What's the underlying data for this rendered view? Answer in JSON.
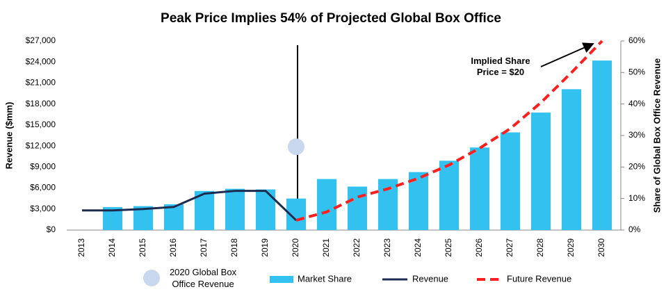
{
  "chart_data": {
    "type": "bar",
    "title": "Peak Price Implies 54% of Projected Global Box Office",
    "y_label": "Revenue ($mm)",
    "y2_label": "Share of Global Box Office Revenue",
    "annotation": "Implied Share Price = $20",
    "categories": [
      "2013",
      "2014",
      "2015",
      "2016",
      "2017",
      "2018",
      "2019",
      "2020",
      "2021",
      "2022",
      "2023",
      "2024",
      "2025",
      "2026",
      "2027",
      "2028",
      "2029",
      "2030"
    ],
    "series": [
      {
        "name": "2020 Global Box Office Revenue",
        "type": "marker",
        "color": "#c9d7ef",
        "values": [
          null,
          null,
          null,
          null,
          null,
          null,
          null,
          11900,
          null,
          null,
          null,
          null,
          null,
          null,
          null,
          null,
          null,
          null
        ]
      },
      {
        "name": "Market Share",
        "type": "bar",
        "axis": "y2",
        "color": "#33c2f0",
        "values": [
          null,
          7.3,
          7.6,
          8.2,
          12.4,
          13.1,
          12.9,
          10,
          16.2,
          13.8,
          16.2,
          18.4,
          22,
          26.2,
          31,
          37.3,
          44.7,
          53.8
        ]
      },
      {
        "name": "Revenue",
        "type": "line",
        "color": "#1c2b50",
        "dashed": false,
        "values": [
          2800,
          2800,
          3000,
          3300,
          5200,
          5600,
          5600,
          1400,
          null,
          null,
          null,
          null,
          null,
          null,
          null,
          null,
          null,
          null
        ]
      },
      {
        "name": "Future Revenue",
        "type": "line",
        "color": "#ff1f1f",
        "dashed": true,
        "values": [
          null,
          null,
          null,
          null,
          null,
          null,
          null,
          1400,
          2600,
          4700,
          5900,
          7400,
          9300,
          11700,
          14500,
          18200,
          22500,
          27000
        ]
      }
    ],
    "ylim": [
      0,
      27000
    ],
    "yticks": [
      {
        "value": 0,
        "label": "$0"
      },
      {
        "value": 3000,
        "label": "$3,000"
      },
      {
        "value": 6000,
        "label": "$6,000"
      },
      {
        "value": 9000,
        "label": "$9,000"
      },
      {
        "value": 12000,
        "label": "$12,000"
      },
      {
        "value": 15000,
        "label": "$15,000"
      },
      {
        "value": 18000,
        "label": "$18,000"
      },
      {
        "value": 21000,
        "label": "$21,000"
      },
      {
        "value": 24000,
        "label": "$24,000"
      },
      {
        "value": 27000,
        "label": "$27,000"
      }
    ],
    "y2lim": [
      0,
      60
    ],
    "y2ticks": [
      {
        "value": 0,
        "label": "0%"
      },
      {
        "value": 10,
        "label": "10%"
      },
      {
        "value": 20,
        "label": "20%"
      },
      {
        "value": 30,
        "label": "30%"
      },
      {
        "value": 40,
        "label": "40%"
      },
      {
        "value": 50,
        "label": "50%"
      },
      {
        "value": 60,
        "label": "60%"
      }
    ],
    "grid": false
  }
}
